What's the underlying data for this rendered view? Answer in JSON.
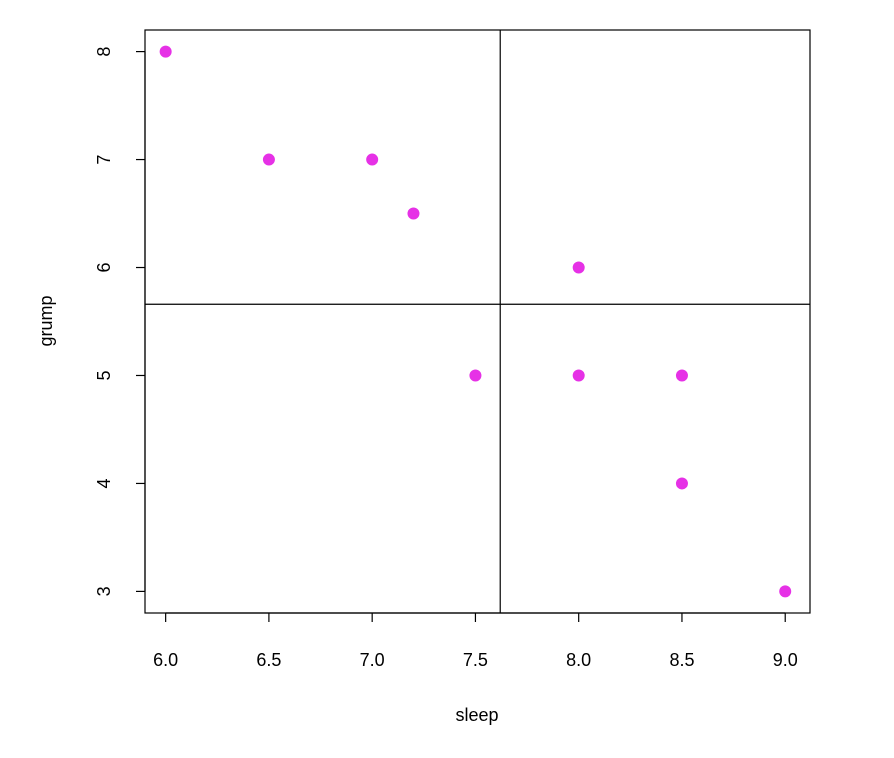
{
  "chart_data": {
    "type": "scatter",
    "title": "",
    "xlabel": "sleep",
    "ylabel": "grump",
    "xlim": [
      5.9,
      9.12
    ],
    "ylim": [
      2.8,
      8.2
    ],
    "xticks": [
      "6.0",
      "6.5",
      "7.0",
      "7.5",
      "8.0",
      "8.5",
      "9.0"
    ],
    "yticks": [
      "3",
      "4",
      "5",
      "6",
      "7",
      "8"
    ],
    "point_color": "#e631e6",
    "grid": false,
    "reference_lines": {
      "vertical_x": 7.62,
      "horizontal_y": 5.66
    },
    "series": [
      {
        "points": [
          {
            "x": 6.0,
            "y": 8
          },
          {
            "x": 6.5,
            "y": 7
          },
          {
            "x": 7.0,
            "y": 7
          },
          {
            "x": 7.2,
            "y": 6.5
          },
          {
            "x": 7.5,
            "y": 5
          },
          {
            "x": 8.0,
            "y": 6
          },
          {
            "x": 8.0,
            "y": 5
          },
          {
            "x": 8.5,
            "y": 5
          },
          {
            "x": 8.5,
            "y": 4
          },
          {
            "x": 9.0,
            "y": 3
          }
        ]
      }
    ]
  }
}
